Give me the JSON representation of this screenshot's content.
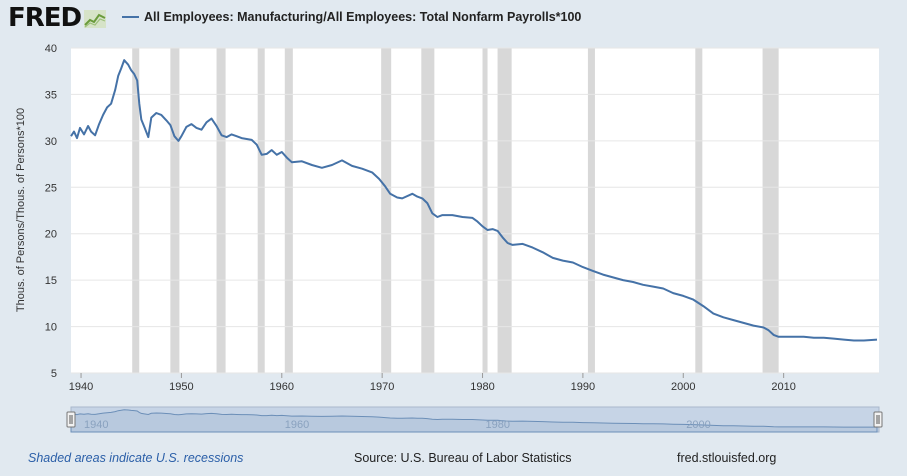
{
  "header": {
    "logo_text": "FRED",
    "logo_icon": "chart-line-icon",
    "legend_label": "All Employees: Manufacturing/All Employees: Total Nonfarm Payrolls*100",
    "legend_color": "#4572a7"
  },
  "footer": {
    "recession_note": "Shaded areas indicate U.S. recessions",
    "source": "Source: U.S. Bureau of Labor Statistics",
    "site": "fred.stlouisfed.org"
  },
  "colors": {
    "background": "#e1e9f0",
    "plot_background": "#ffffff",
    "series": "#4572a7",
    "recession_band": "#d8d8d8",
    "navigator_fill": "#b8c9de"
  },
  "chart_data": {
    "type": "line",
    "title": "",
    "xlabel": "",
    "ylabel": "Thous. of Persons/Thous. of Persons*100",
    "xlim": [
      1939,
      2019.5
    ],
    "ylim": [
      5,
      40
    ],
    "y_ticks": [
      5,
      10,
      15,
      20,
      25,
      30,
      35,
      40
    ],
    "x_ticks": [
      1940,
      1950,
      1960,
      1970,
      1980,
      1990,
      2000,
      2010
    ],
    "grid": true,
    "legend": "top",
    "series": [
      {
        "name": "All Employees: Manufacturing/All Employees: Total Nonfarm Payrolls*100",
        "x": [
          1939.0,
          1939.3,
          1939.6,
          1939.9,
          1940.3,
          1940.7,
          1941.0,
          1941.4,
          1941.8,
          1942.2,
          1942.6,
          1943.0,
          1943.4,
          1943.7,
          1944.0,
          1944.3,
          1944.7,
          1945.0,
          1945.3,
          1945.6,
          1945.8,
          1946.0,
          1946.3,
          1946.7,
          1947.0,
          1947.5,
          1948.0,
          1948.5,
          1948.9,
          1949.3,
          1949.7,
          1950.0,
          1950.5,
          1951.0,
          1951.5,
          1952.0,
          1952.5,
          1953.0,
          1953.5,
          1954.0,
          1954.5,
          1955.0,
          1955.5,
          1956.0,
          1956.5,
          1957.0,
          1957.5,
          1958.0,
          1958.5,
          1959.0,
          1959.5,
          1960.0,
          1960.5,
          1961.0,
          1962.0,
          1963.0,
          1964.0,
          1965.0,
          1966.0,
          1967.0,
          1968.0,
          1969.0,
          1969.7,
          1970.3,
          1970.8,
          1971.5,
          1972.0,
          1973.0,
          1973.5,
          1974.0,
          1974.5,
          1975.0,
          1975.5,
          1976.0,
          1977.0,
          1978.0,
          1979.0,
          1979.5,
          1980.0,
          1980.5,
          1981.0,
          1981.5,
          1982.0,
          1982.5,
          1983.0,
          1984.0,
          1985.0,
          1986.0,
          1987.0,
          1988.0,
          1989.0,
          1990.0,
          1991.0,
          1992.0,
          1993.0,
          1994.0,
          1995.0,
          1996.0,
          1997.0,
          1998.0,
          1999.0,
          2000.0,
          2001.0,
          2002.0,
          2003.0,
          2004.0,
          2005.0,
          2006.0,
          2007.0,
          2008.0,
          2008.5,
          2009.0,
          2009.5,
          2010.0,
          2011.0,
          2012.0,
          2013.0,
          2014.0,
          2015.0,
          2016.0,
          2017.0,
          2018.0,
          2019.3
        ],
        "values": [
          30.5,
          31.0,
          30.3,
          31.4,
          30.7,
          31.6,
          31.0,
          30.6,
          31.8,
          32.8,
          33.6,
          34.0,
          35.5,
          37.0,
          37.8,
          38.7,
          38.2,
          37.6,
          37.2,
          36.5,
          34.0,
          32.3,
          31.5,
          30.4,
          32.5,
          33.0,
          32.8,
          32.2,
          31.7,
          30.5,
          30.0,
          30.5,
          31.5,
          31.8,
          31.4,
          31.2,
          32.0,
          32.4,
          31.6,
          30.6,
          30.4,
          30.7,
          30.5,
          30.3,
          30.2,
          30.1,
          29.6,
          28.5,
          28.6,
          29.0,
          28.5,
          28.8,
          28.2,
          27.7,
          27.8,
          27.4,
          27.1,
          27.4,
          27.9,
          27.3,
          27.0,
          26.6,
          25.9,
          25.1,
          24.3,
          23.9,
          23.8,
          24.3,
          24.0,
          23.8,
          23.3,
          22.2,
          21.8,
          22.0,
          22.0,
          21.8,
          21.7,
          21.3,
          20.8,
          20.4,
          20.5,
          20.3,
          19.6,
          19.0,
          18.8,
          18.9,
          18.5,
          18.0,
          17.4,
          17.1,
          16.9,
          16.4,
          16.0,
          15.6,
          15.3,
          15.0,
          14.8,
          14.5,
          14.3,
          14.1,
          13.6,
          13.3,
          12.9,
          12.2,
          11.4,
          11.0,
          10.7,
          10.4,
          10.1,
          9.9,
          9.6,
          9.1,
          8.9,
          8.9,
          8.9,
          8.9,
          8.8,
          8.8,
          8.7,
          8.6,
          8.5,
          8.5,
          8.6
        ]
      }
    ],
    "recessions": [
      [
        1945.1,
        1945.8
      ],
      [
        1948.9,
        1949.8
      ],
      [
        1953.5,
        1954.4
      ],
      [
        1957.6,
        1958.3
      ],
      [
        1960.3,
        1961.1
      ],
      [
        1969.9,
        1970.9
      ],
      [
        1973.9,
        1975.2
      ],
      [
        1980.0,
        1980.5
      ],
      [
        1981.5,
        1982.9
      ],
      [
        1990.5,
        1991.2
      ],
      [
        2001.2,
        2001.9
      ],
      [
        2007.9,
        2009.5
      ]
    ]
  },
  "navigator": {
    "x_ticks": [
      1940,
      1960,
      1980,
      2000
    ],
    "xlim": [
      1939,
      2019.5
    ]
  }
}
